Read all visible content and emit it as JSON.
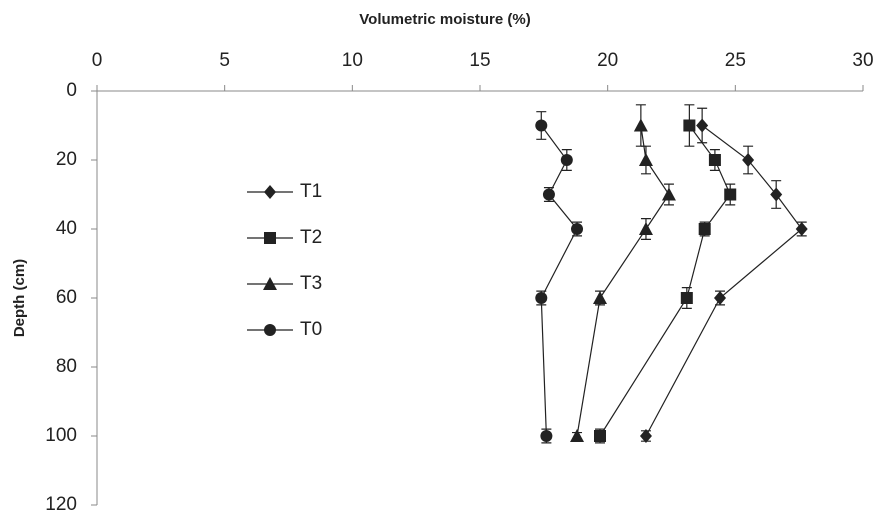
{
  "chart_data": {
    "type": "line",
    "x_label": "Volumetric moisture (%)",
    "y_label": "Depth (cm)",
    "xlim": [
      0,
      30
    ],
    "xticks": [
      0,
      5,
      10,
      15,
      20,
      25,
      30
    ],
    "ylim": [
      0,
      120
    ],
    "yticks": [
      0,
      20,
      40,
      60,
      80,
      100,
      120
    ],
    "y_inverted": true,
    "x_axis_position": "top",
    "depth": [
      10,
      20,
      30,
      40,
      60,
      100
    ],
    "color": "#222222",
    "series": [
      {
        "name": "T1",
        "marker": "diamond",
        "x": [
          23.7,
          25.5,
          26.6,
          27.6,
          24.4,
          21.5
        ],
        "errors": [
          5,
          4,
          4,
          2,
          2,
          1.5
        ]
      },
      {
        "name": "T2",
        "marker": "square",
        "x": [
          23.2,
          24.2,
          24.8,
          23.8,
          23.1,
          19.7
        ],
        "errors": [
          6,
          3,
          3,
          2,
          3,
          2
        ]
      },
      {
        "name": "T3",
        "marker": "triangle",
        "x": [
          21.3,
          21.5,
          22.4,
          21.5,
          19.7,
          18.8
        ],
        "errors": [
          6,
          4,
          3,
          3,
          2,
          1
        ]
      },
      {
        "name": "T0",
        "marker": "circle",
        "x": [
          17.4,
          18.4,
          17.7,
          18.8,
          17.4,
          17.6
        ],
        "errors": [
          4,
          3,
          2,
          2,
          2,
          2
        ]
      }
    ]
  }
}
